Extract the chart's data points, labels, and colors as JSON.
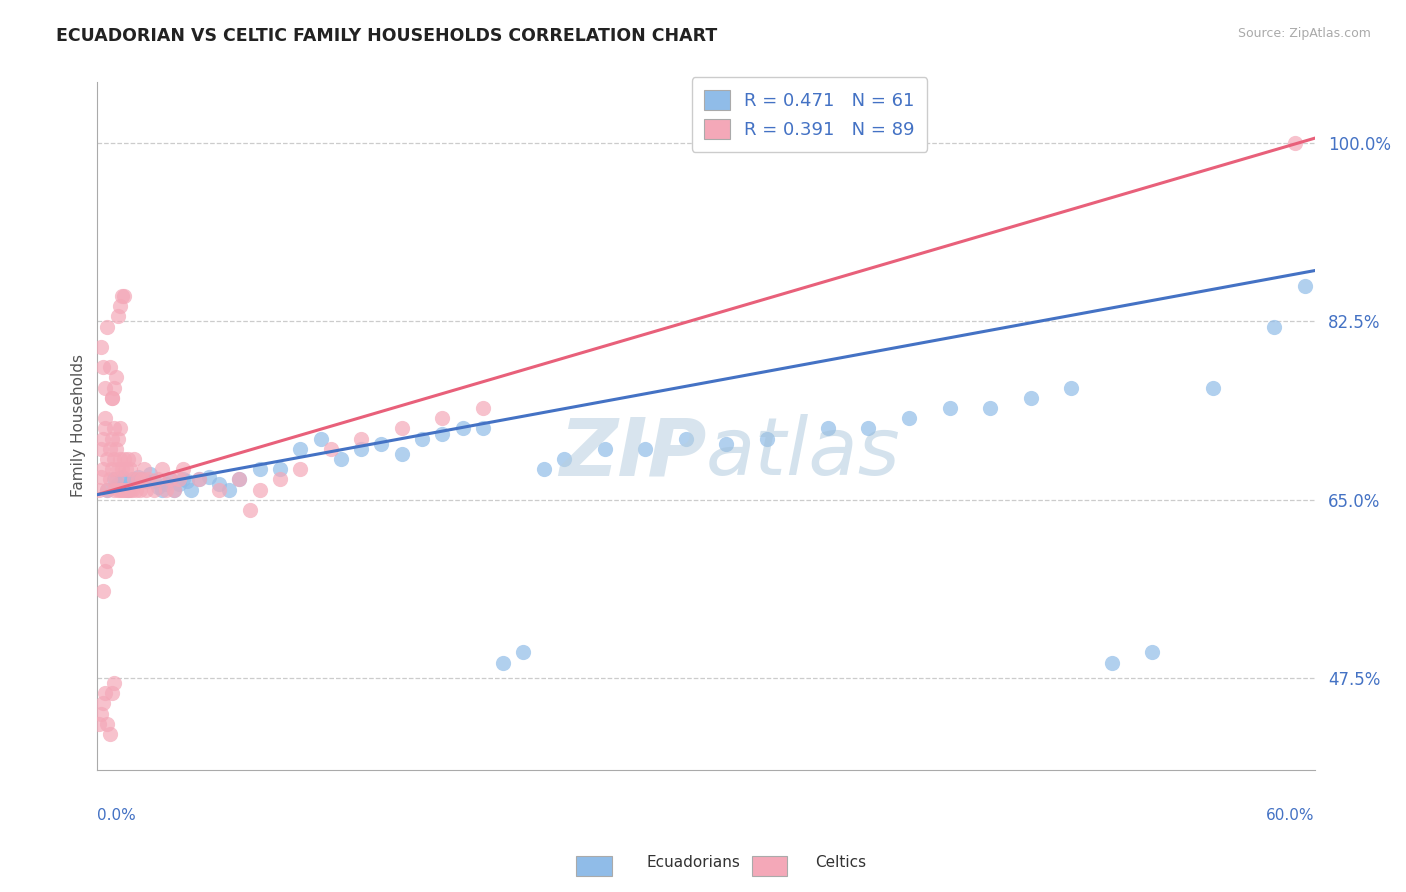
{
  "title": "ECUADORIAN VS CELTIC FAMILY HOUSEHOLDS CORRELATION CHART",
  "source": "Source: ZipAtlas.com",
  "ylabel": "Family Households",
  "ytick_labels": [
    "47.5%",
    "65.0%",
    "82.5%",
    "100.0%"
  ],
  "ytick_values": [
    0.475,
    0.65,
    0.825,
    1.0
  ],
  "xmin": 0.0,
  "xmax": 0.6,
  "ymin": 0.385,
  "ymax": 1.06,
  "r_ecuadorian": 0.471,
  "n_ecuadorian": 61,
  "r_celtic": 0.391,
  "n_celtic": 89,
  "color_ecuadorian": "#90bce8",
  "color_celtic": "#f4a8b8",
  "color_line_ecuadorian": "#4472c4",
  "color_line_celtic": "#e8607a",
  "color_title": "#222222",
  "color_axis_labels": "#4472c4",
  "color_source": "#aaaaaa",
  "watermark_color": "#ccdcee",
  "ecuadorian_x": [
    0.005,
    0.008,
    0.01,
    0.012,
    0.013,
    0.015,
    0.016,
    0.017,
    0.018,
    0.02,
    0.022,
    0.024,
    0.026,
    0.028,
    0.03,
    0.032,
    0.034,
    0.036,
    0.038,
    0.04,
    0.042,
    0.044,
    0.046,
    0.05,
    0.055,
    0.06,
    0.065,
    0.07,
    0.08,
    0.09,
    0.1,
    0.11,
    0.12,
    0.13,
    0.14,
    0.15,
    0.16,
    0.17,
    0.18,
    0.19,
    0.2,
    0.21,
    0.22,
    0.23,
    0.25,
    0.27,
    0.29,
    0.31,
    0.33,
    0.36,
    0.38,
    0.4,
    0.42,
    0.44,
    0.46,
    0.48,
    0.5,
    0.52,
    0.55,
    0.58,
    0.595
  ],
  "ecuadorian_y": [
    0.66,
    0.67,
    0.665,
    0.672,
    0.668,
    0.66,
    0.665,
    0.67,
    0.668,
    0.672,
    0.67,
    0.668,
    0.675,
    0.668,
    0.662,
    0.66,
    0.665,
    0.67,
    0.66,
    0.665,
    0.67,
    0.668,
    0.66,
    0.67,
    0.672,
    0.665,
    0.66,
    0.67,
    0.68,
    0.68,
    0.7,
    0.71,
    0.69,
    0.7,
    0.705,
    0.695,
    0.71,
    0.715,
    0.72,
    0.72,
    0.49,
    0.5,
    0.68,
    0.69,
    0.7,
    0.7,
    0.71,
    0.705,
    0.71,
    0.72,
    0.72,
    0.73,
    0.74,
    0.74,
    0.75,
    0.76,
    0.49,
    0.5,
    0.76,
    0.82,
    0.86
  ],
  "celtic_x": [
    0.001,
    0.002,
    0.002,
    0.003,
    0.003,
    0.004,
    0.004,
    0.005,
    0.005,
    0.006,
    0.006,
    0.007,
    0.007,
    0.007,
    0.008,
    0.008,
    0.008,
    0.009,
    0.009,
    0.01,
    0.01,
    0.01,
    0.011,
    0.011,
    0.011,
    0.012,
    0.012,
    0.013,
    0.013,
    0.014,
    0.014,
    0.015,
    0.015,
    0.016,
    0.016,
    0.017,
    0.018,
    0.018,
    0.019,
    0.02,
    0.021,
    0.022,
    0.023,
    0.024,
    0.025,
    0.028,
    0.03,
    0.032,
    0.034,
    0.036,
    0.038,
    0.04,
    0.042,
    0.05,
    0.06,
    0.07,
    0.075,
    0.08,
    0.09,
    0.1,
    0.115,
    0.13,
    0.15,
    0.17,
    0.19,
    0.002,
    0.003,
    0.004,
    0.005,
    0.006,
    0.007,
    0.008,
    0.009,
    0.01,
    0.011,
    0.012,
    0.013,
    0.001,
    0.002,
    0.003,
    0.004,
    0.005,
    0.006,
    0.007,
    0.008,
    0.59,
    0.003,
    0.004,
    0.005
  ],
  "celtic_y": [
    0.66,
    0.672,
    0.7,
    0.68,
    0.71,
    0.72,
    0.73,
    0.66,
    0.69,
    0.67,
    0.7,
    0.68,
    0.71,
    0.75,
    0.66,
    0.69,
    0.72,
    0.67,
    0.7,
    0.66,
    0.68,
    0.71,
    0.66,
    0.69,
    0.72,
    0.66,
    0.68,
    0.66,
    0.69,
    0.66,
    0.68,
    0.66,
    0.69,
    0.66,
    0.68,
    0.66,
    0.67,
    0.69,
    0.66,
    0.67,
    0.66,
    0.67,
    0.68,
    0.66,
    0.67,
    0.66,
    0.67,
    0.68,
    0.66,
    0.67,
    0.66,
    0.67,
    0.68,
    0.67,
    0.66,
    0.67,
    0.64,
    0.66,
    0.67,
    0.68,
    0.7,
    0.71,
    0.72,
    0.73,
    0.74,
    0.8,
    0.78,
    0.76,
    0.82,
    0.78,
    0.75,
    0.76,
    0.77,
    0.83,
    0.84,
    0.85,
    0.85,
    0.43,
    0.44,
    0.45,
    0.46,
    0.43,
    0.42,
    0.46,
    0.47,
    1.0,
    0.56,
    0.58,
    0.59
  ]
}
